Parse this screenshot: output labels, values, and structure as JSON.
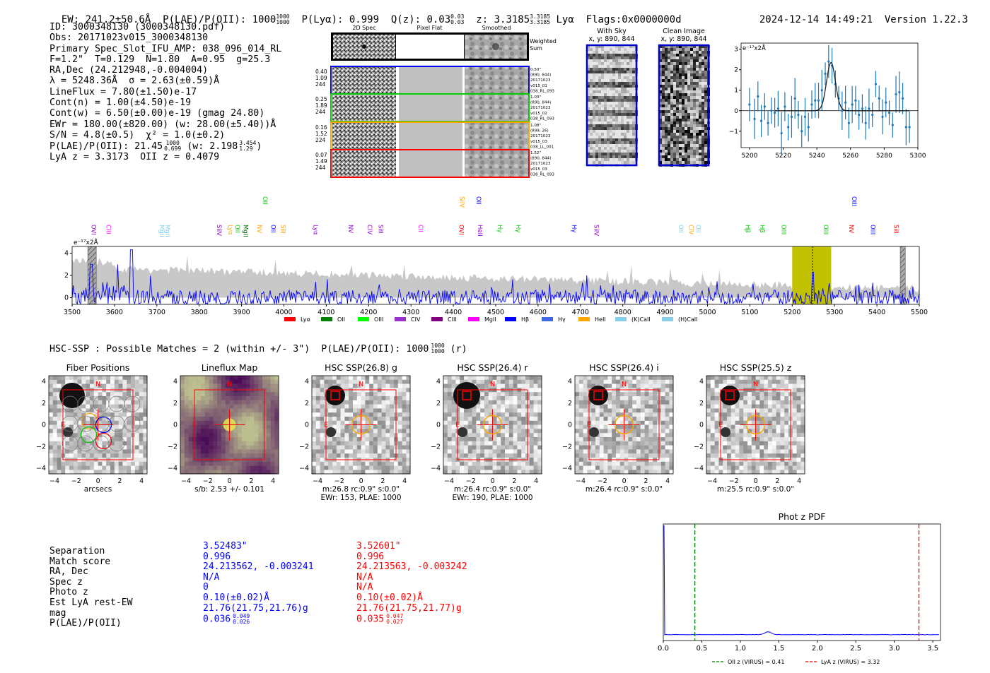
{
  "header": {
    "ew": "EW: 241.2±50.6Å",
    "plae_label": "P(LAE)/P(OII): 1000",
    "plae_hi": "1000",
    "plae_lo": "1000",
    "plya": "P(Lyα): 0.999",
    "qz_label": "Q(z): 0.03",
    "qz_hi": "0.03",
    "qz_lo": "0.03",
    "z_label": "z: 3.3185",
    "z_hi": "3.3185",
    "z_lo": "3.3185",
    "z_line": "Lyα",
    "flags": "Flags:0x0000000d",
    "datetime": "2024-12-14 14:49:21",
    "version": "Version 1.22.3"
  },
  "info": {
    "id": "ID: 3000348130 (3000348130.pdf)",
    "obs": "Obs: 20171023v015_3000348130",
    "primary": "Primary Spec_Slot_IFU_AMP: 038_096_014_RL",
    "fwhm": "F=1.2\"  T=0.129  N=1.80  A=0.95  g=25.3",
    "radec": "RA,Dec (24.212948,-0.004004)",
    "lambda": "λ = 5248.36Å  σ = 2.63(±0.59)Å",
    "lineflux": "LineFlux = 7.80(±1.50)e-17",
    "contn": "Cont(n) = 1.00(±4.50)e-19",
    "contw": "Cont(w) = 6.50(±0.00)e-19 (gmag 24.80)",
    "ewr": "EWr = 180.00(±820.00) (w: 28.00(±5.40))Å",
    "sn": "S/N = 4.8(±0.5)  χ² = 1.0(±0.2)",
    "plae_label": "P(LAE)/P(OII): 21.45",
    "plae_hi": "1000",
    "plae_lo": "0.699",
    "plae_w": "(w: 2.198",
    "plae_w_hi": "3.454",
    "plae_w_lo": "1.29",
    "plae_w_close": ")",
    "lyaz": "LyA z = 3.3173  OII z = 0.4079"
  },
  "fiber_panel": {
    "col_titles": [
      "2D Spec",
      "Pixel Flat",
      "Smoothed"
    ],
    "weighted_label": "Weighted Sum",
    "rows": [
      {
        "stats": [
          "0.40",
          "1.09",
          "244"
        ],
        "color": "#0000ff",
        "label": [
          "0.50\"",
          "(890, 844)",
          "20171023",
          "v015_01",
          "038_RL_093"
        ]
      },
      {
        "stats": [
          "0.25",
          "1.89",
          "244"
        ],
        "color": "#00cc00",
        "label": [
          "1.03\"",
          "(890, 844)",
          "20171023",
          "v015_02",
          "038_RL_093"
        ]
      },
      {
        "stats": [
          "0.16",
          "1.52",
          "224"
        ],
        "color": "#ffa500",
        "label": [
          "1.08\"",
          "(899, 26)",
          "20171023",
          "v015_03",
          "038_LL_001"
        ]
      },
      {
        "stats": [
          "0.07",
          "1.49",
          "244"
        ],
        "color": "#ff0000",
        "label": [
          "1.52\"",
          "(890, 844)",
          "20171023",
          "v015_03",
          "038_RL_093"
        ]
      }
    ]
  },
  "sky_panels": [
    {
      "title": "With Sky",
      "coords": "x, y: 890, 844"
    },
    {
      "title": "Clean Image",
      "coords": "x, y: 890, 844"
    }
  ],
  "zoom_chart": {
    "ylabel": "e⁻¹⁷x2Å",
    "x_ticks": [
      "5200",
      "5220",
      "5240",
      "5260",
      "5280",
      "5300"
    ],
    "y_ticks": [
      "3",
      "2",
      "1",
      "0",
      "−1"
    ]
  },
  "line_labels": [
    {
      "name": "OVI",
      "w": 3546,
      "color": "#9400d3",
      "row": 0
    },
    {
      "name": "CIII",
      "w": 3581,
      "color": "#ff00ff",
      "row": 0
    },
    {
      "name": "MgII",
      "w": 3707,
      "color": "#87ceeb",
      "row": 0
    },
    {
      "name": "MgII",
      "w": 3720,
      "color": "#87ceeb",
      "row": 0
    },
    {
      "name": "SiIV",
      "w": 3842,
      "color": "#9400d3",
      "row": 0
    },
    {
      "name": "Lyα",
      "w": 3869,
      "color": "#ffa500",
      "row": 0
    },
    {
      "name": "OII",
      "w": 3886,
      "color": "#00cc00",
      "row": 0
    },
    {
      "name": "MgII",
      "w": 3905,
      "color": "#006400",
      "row": 0
    },
    {
      "name": "OII",
      "w": 3951,
      "color": "#00cc00",
      "row": 1
    },
    {
      "name": "NV",
      "w": 3937,
      "color": "#ffa500",
      "row": 0
    },
    {
      "name": "OII",
      "w": 3970,
      "color": "#0000ff",
      "row": 0
    },
    {
      "name": "SiII",
      "w": 3993,
      "color": "#ffa500",
      "row": 0
    },
    {
      "name": "Lyα",
      "w": 4070,
      "color": "#9400d3",
      "row": 0
    },
    {
      "name": "NV",
      "w": 4153,
      "color": "#9400d3",
      "row": 0
    },
    {
      "name": "CIV",
      "w": 4198,
      "color": "#9400d3",
      "row": 0
    },
    {
      "name": "SiII",
      "w": 4224,
      "color": "#9400d3",
      "row": 0
    },
    {
      "name": "CII",
      "w": 4318,
      "color": "#ff00ff",
      "row": 0
    },
    {
      "name": "OVI",
      "w": 4414,
      "color": "#ff0000",
      "row": 0
    },
    {
      "name": "SiIV",
      "w": 4416,
      "color": "#ffa500",
      "row": 1
    },
    {
      "name": "HeII",
      "w": 4458,
      "color": "#9400d3",
      "row": 0
    },
    {
      "name": "OII",
      "w": 4455,
      "color": "#0000ff",
      "row": 1
    },
    {
      "name": "Hγ",
      "w": 4505,
      "color": "#00cc00",
      "row": 0
    },
    {
      "name": "Hγ",
      "w": 4548,
      "color": "#00cc00",
      "row": 0
    },
    {
      "name": "Hγ",
      "w": 4680,
      "color": "#0000ff",
      "row": 0
    },
    {
      "name": "SiIV",
      "w": 4733,
      "color": "#9400d3",
      "row": 0
    },
    {
      "name": "OII",
      "w": 4932,
      "color": "#87ceeb",
      "row": 0
    },
    {
      "name": "CIV",
      "w": 4957,
      "color": "#ffa500",
      "row": 0
    },
    {
      "name": "OII",
      "w": 4973,
      "color": "#87ceeb",
      "row": 0
    },
    {
      "name": "Hβ",
      "w": 5090,
      "color": "#00cc00",
      "row": 0
    },
    {
      "name": "Hβ",
      "w": 5124,
      "color": "#00cc00",
      "row": 0
    },
    {
      "name": "OIII",
      "w": 5175,
      "color": "#00cc00",
      "row": 0
    },
    {
      "name": "OIII",
      "w": 5275,
      "color": "#00cc00",
      "row": 0
    },
    {
      "name": "NV",
      "w": 5335,
      "color": "#ff0000",
      "row": 0
    },
    {
      "name": "OIII",
      "w": 5341,
      "color": "#0000ff",
      "row": 1
    },
    {
      "name": "OIII",
      "w": 5386,
      "color": "#0000ff",
      "row": 0
    },
    {
      "name": "SiII",
      "w": 5441,
      "color": "#ff0000",
      "row": 0
    }
  ],
  "legend": [
    {
      "name": "Lyα",
      "color": "#ff0000"
    },
    {
      "name": "OII",
      "color": "#008000"
    },
    {
      "name": "OIII",
      "color": "#00ff00"
    },
    {
      "name": "CIV",
      "color": "#9932cc"
    },
    {
      "name": "CIII",
      "color": "#800080"
    },
    {
      "name": "MgII",
      "color": "#ff00ff"
    },
    {
      "name": "Hβ",
      "color": "#0000ff"
    },
    {
      "name": "Hγ",
      "color": "#4169e1"
    },
    {
      "name": "HeII",
      "color": "#ffa500"
    },
    {
      "name": "(K)CaII",
      "color": "#87ceeb"
    },
    {
      "name": "(H)CaII",
      "color": "#87ceeb"
    }
  ],
  "hsc": {
    "title_prefix": "HSC-SSP : Possible Matches = 2 (within +/- 3\")  P(LAE)/P(OII): 1000",
    "title_hi": "1000",
    "title_lo": "1000",
    "title_suffix": "(r)"
  },
  "cutouts": [
    {
      "title": "Fiber Positions",
      "cap1": "arcsecs",
      "cap2": ""
    },
    {
      "title": "Lineflux Map",
      "cap1": "s/b: 2.53 +/- 0.101",
      "cap2": ""
    },
    {
      "title": "HSC SSP(26.8) g",
      "cap1": "m:26.8 rc:0.9\"  s:0.0\"",
      "cap2": "EWr: 153, PLAE: 1000"
    },
    {
      "title": "HSC SSP(26.4) r",
      "cap1": "m:26.4 rc:0.9\"  s:0.0\"",
      "cap2": "EWr: 190, PLAE: 1000"
    },
    {
      "title": "HSC SSP(26.4) i",
      "cap1": "m:26.4 rc:0.9\"  s:0.0\"",
      "cap2": ""
    },
    {
      "title": "HSC SSP(25.5) z",
      "cap1": "m:25.5 rc:0.9\"  s:0.0\"",
      "cap2": ""
    }
  ],
  "cutout_axis": {
    "ticks": [
      "4",
      "2",
      "0",
      "−2",
      "−4"
    ],
    "xticks": [
      "−4",
      "−2",
      "0",
      "2",
      "4"
    ],
    "n": "N",
    "e": "E"
  },
  "match_table": {
    "labels": [
      "Separation",
      "Match score",
      "RA, Dec",
      "Spec z",
      "Photo z",
      "Est LyA rest-EW",
      "mag",
      "P(LAE)/P(OII)"
    ],
    "blue": [
      "3.52483\"",
      "0.996",
      "24.213562, -0.003241",
      "N/A",
      "0",
      "0.10(±0.02)Å",
      "21.76(21.75,21.76)g"
    ],
    "blue_plae": "0.036",
    "blue_plae_hi": "0.049",
    "blue_plae_lo": "0.026",
    "red": [
      "3.52601\"",
      "0.996",
      "24.213563, -0.003242",
      "N/A",
      "N/A",
      "0.10(±0.02)Å",
      "21.76(21.75,21.77)g"
    ],
    "red_plae": "0.035",
    "red_plae_hi": "0.047",
    "red_plae_lo": "0.027"
  },
  "chart_data": [
    {
      "type": "line",
      "title": "",
      "ylabel": "e⁻¹⁷x2Å",
      "xlim": [
        3500,
        5500
      ],
      "ylim": [
        -0.6,
        4.6
      ],
      "x_ticks": [
        3500,
        3600,
        3700,
        3800,
        3900,
        4000,
        4100,
        4200,
        4300,
        4400,
        4500,
        4600,
        4700,
        4800,
        4900,
        5000,
        5100,
        5200,
        5300,
        5400,
        5500
      ],
      "y_ticks": [
        0,
        2,
        4
      ],
      "highlight_region": [
        5200,
        5292
      ],
      "line_center": 5248,
      "hatched_regions": [
        [
          3537,
          3557
        ],
        [
          5455,
          5467
        ]
      ]
    },
    {
      "type": "scatter",
      "title": "",
      "xlim": [
        5195,
        5300
      ],
      "ylim": [
        -1.8,
        3.3
      ],
      "points": [
        [
          5200,
          0.3
        ],
        [
          5203,
          -0.4
        ],
        [
          5205,
          0.7
        ],
        [
          5207,
          -0.5
        ],
        [
          5209,
          0.2
        ],
        [
          5211,
          -0.6
        ],
        [
          5213,
          0.0
        ],
        [
          5215,
          -0.1
        ],
        [
          5217,
          0.1
        ],
        [
          5219,
          -1.1
        ],
        [
          5221,
          0.2
        ],
        [
          5223,
          -0.8
        ],
        [
          5225,
          -0.3
        ],
        [
          5227,
          0.6
        ],
        [
          5229,
          -0.2
        ],
        [
          5231,
          -1.0
        ],
        [
          5233,
          -0.3
        ],
        [
          5235,
          -0.8
        ],
        [
          5237,
          0.3
        ],
        [
          5239,
          0.5
        ],
        [
          5241,
          0.5
        ],
        [
          5243,
          1.0
        ],
        [
          5245,
          1.8
        ],
        [
          5247,
          2.4
        ],
        [
          5249,
          2.2
        ],
        [
          5251,
          1.3
        ],
        [
          5253,
          0.6
        ],
        [
          5255,
          0.0
        ],
        [
          5257,
          0.4
        ],
        [
          5259,
          -0.6
        ],
        [
          5261,
          0.3
        ],
        [
          5263,
          0.5
        ],
        [
          5265,
          -0.2
        ],
        [
          5267,
          0.1
        ],
        [
          5269,
          -0.6
        ],
        [
          5271,
          0.1
        ],
        [
          5273,
          -0.2
        ],
        [
          5275,
          1.3
        ],
        [
          5277,
          0.6
        ],
        [
          5279,
          -0.3
        ],
        [
          5281,
          0.4
        ],
        [
          5283,
          -0.1
        ],
        [
          5285,
          -0.7
        ],
        [
          5287,
          0.8
        ],
        [
          5289,
          0.9
        ],
        [
          5291,
          0.6
        ],
        [
          5293,
          -0.8
        ],
        [
          5295,
          -0.8
        ]
      ],
      "fit": {
        "amplitude": 2.35,
        "center": 5248.4,
        "sigma": 2.63,
        "offset": 0.0
      }
    },
    {
      "type": "line",
      "title": "Phot z PDF",
      "xlim": [
        0.0,
        3.6
      ],
      "x_ticks": [
        0.0,
        0.5,
        1.0,
        1.5,
        2.0,
        2.5,
        3.0,
        3.5
      ],
      "vlines": [
        {
          "x": 0.41,
          "label": "OII z (VIRUS) = 0.41",
          "color": "#008000"
        },
        {
          "x": 3.32,
          "label": "LyA z (VIRUS) = 3.32",
          "color": "#ff0000"
        }
      ]
    }
  ]
}
